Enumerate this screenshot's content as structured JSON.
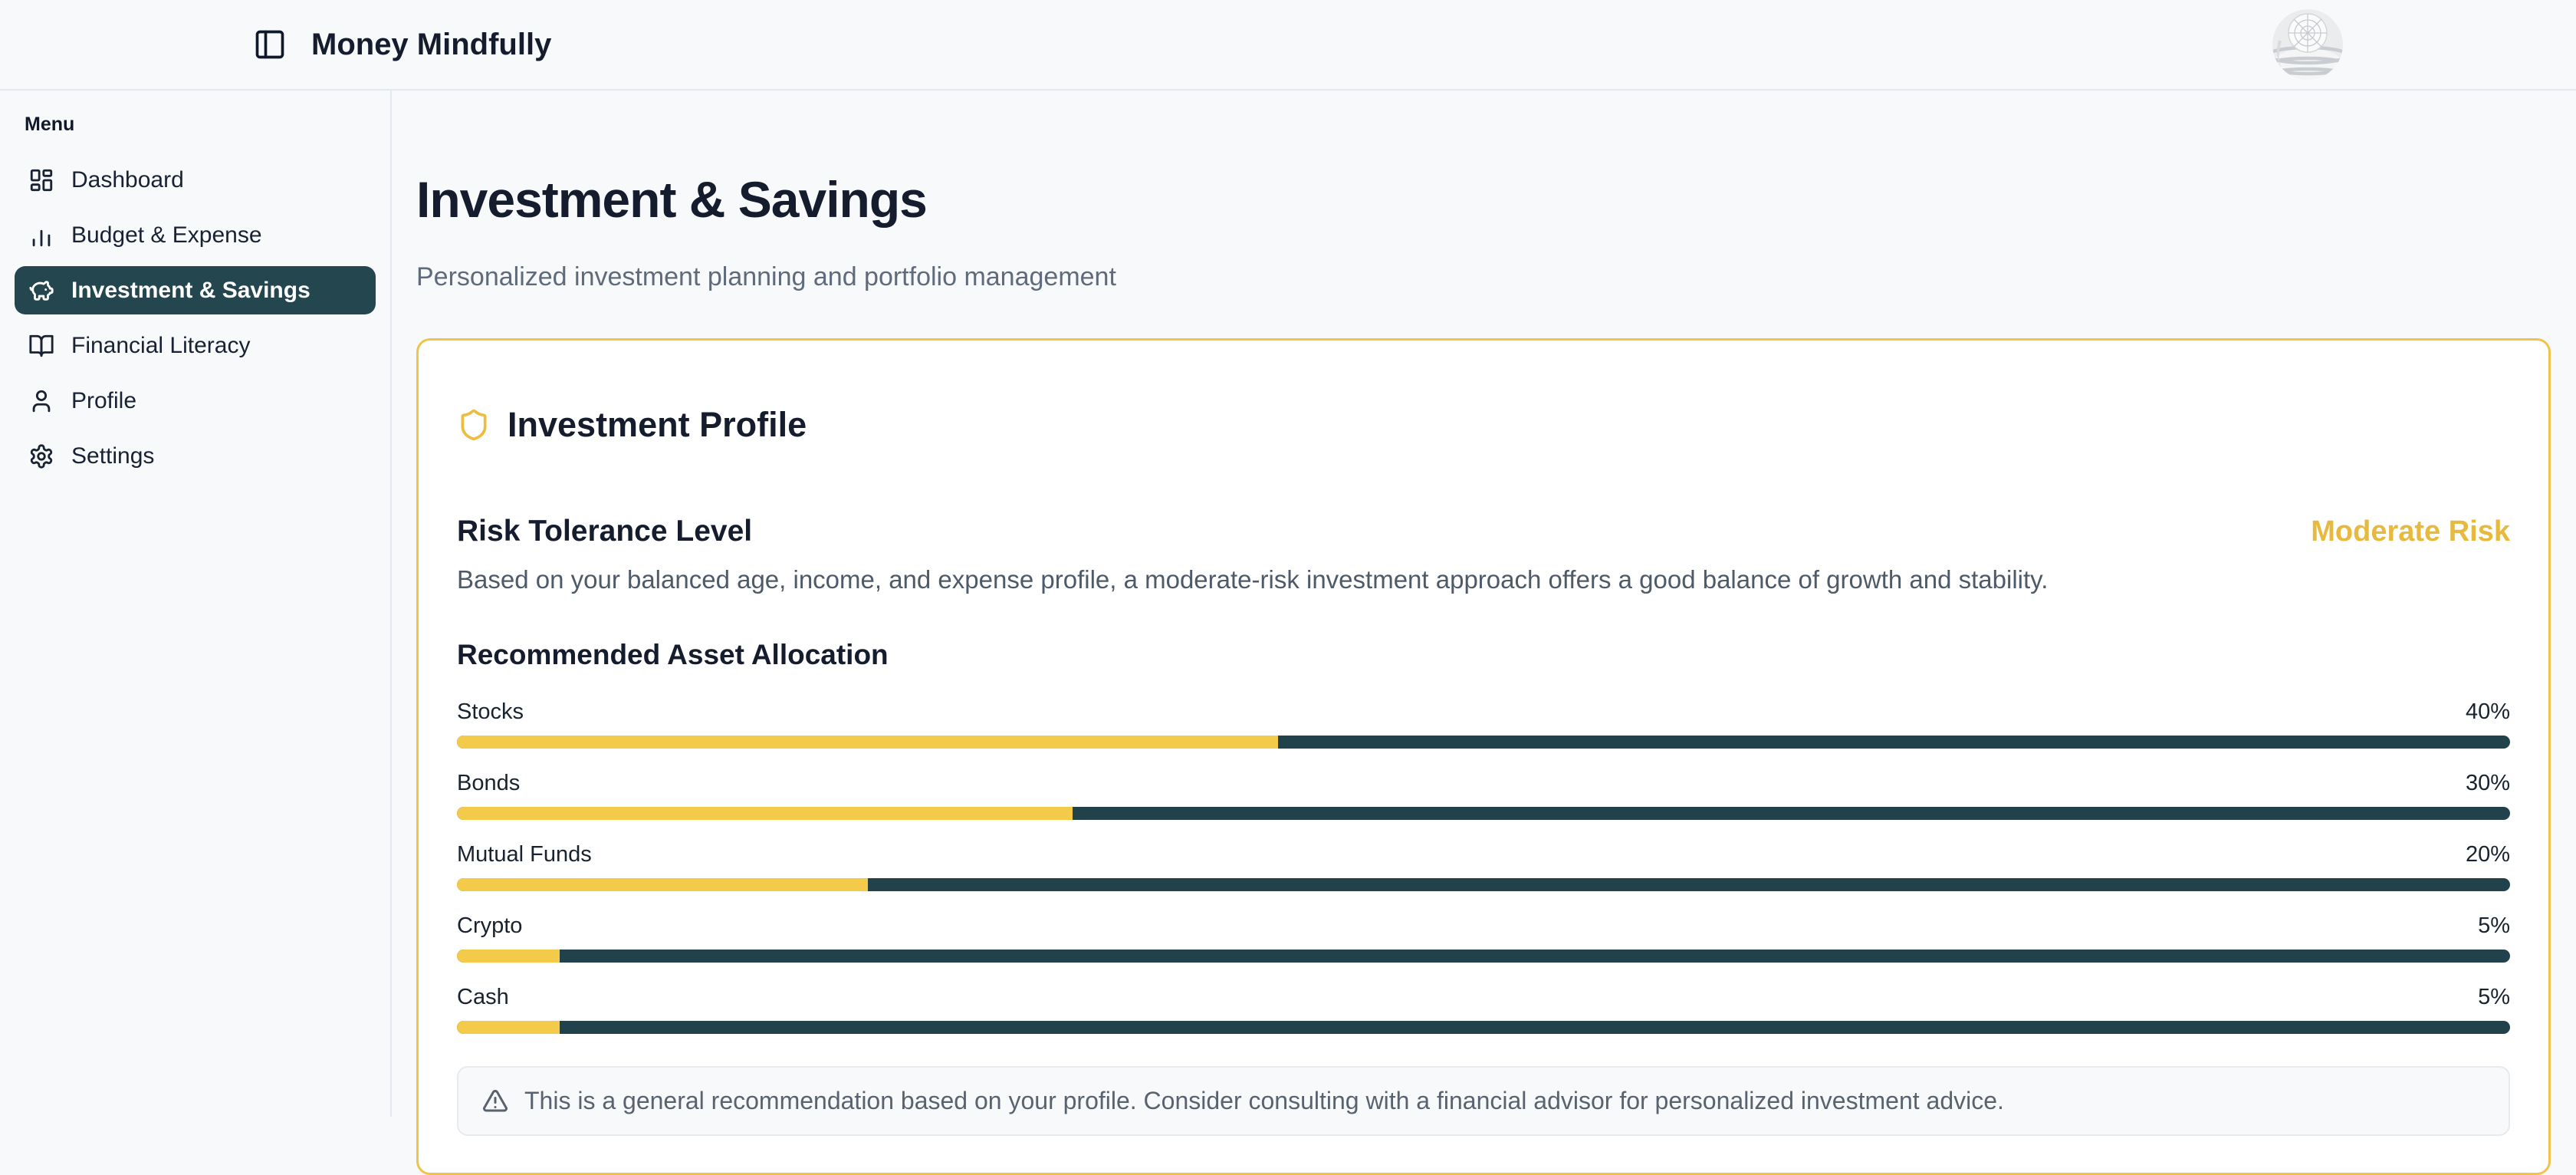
{
  "header": {
    "app_title": "Money Mindfully"
  },
  "sidebar": {
    "menu_label": "Menu",
    "items": [
      {
        "label": "Dashboard",
        "icon": "dashboard-icon",
        "active": false
      },
      {
        "label": "Budget & Expense",
        "icon": "bar-chart-icon",
        "active": false
      },
      {
        "label": "Investment & Savings",
        "icon": "piggy-bank-icon",
        "active": true
      },
      {
        "label": "Financial Literacy",
        "icon": "book-open-icon",
        "active": false
      },
      {
        "label": "Profile",
        "icon": "user-icon",
        "active": false
      },
      {
        "label": "Settings",
        "icon": "gear-icon",
        "active": false
      }
    ]
  },
  "page": {
    "title": "Investment & Savings",
    "subtitle": "Personalized investment planning and portfolio management"
  },
  "investment_profile_card": {
    "title": "Investment Profile",
    "risk": {
      "heading": "Risk Tolerance Level",
      "level": "Moderate Risk",
      "description": "Based on your balanced age, income, and expense profile, a moderate-risk investment approach offers a good balance of growth and stability."
    },
    "allocation": {
      "heading": "Recommended Asset Allocation",
      "items": [
        {
          "label": "Stocks",
          "percent": 40,
          "percent_label": "40%"
        },
        {
          "label": "Bonds",
          "percent": 30,
          "percent_label": "30%"
        },
        {
          "label": "Mutual Funds",
          "percent": 20,
          "percent_label": "20%"
        },
        {
          "label": "Crypto",
          "percent": 5,
          "percent_label": "5%"
        },
        {
          "label": "Cash",
          "percent": 5,
          "percent_label": "5%"
        }
      ]
    },
    "note": "This is a general recommendation based on your profile. Consider consulting with a financial advisor for personalized investment advice."
  },
  "colors": {
    "accent_gold_border": "#f0c44c",
    "bar_fill_yellow": "#f4ca4a",
    "bar_track_teal": "#21424b",
    "sidebar_active_bg": "#24464e",
    "risk_level_text": "#e7b93f"
  }
}
